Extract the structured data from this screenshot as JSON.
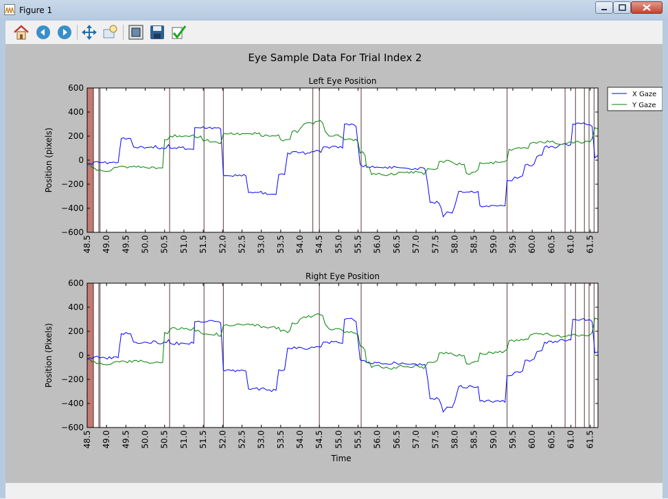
{
  "window": {
    "title": "Figure 1",
    "buttons": [
      "minimize",
      "maximize",
      "close"
    ]
  },
  "toolbar": {
    "items": [
      "home-icon",
      "back-icon",
      "forward-icon",
      "pan-icon",
      "zoom-icon",
      "configure-subplots-icon",
      "save-icon",
      "edit-check-icon"
    ]
  },
  "figure_title": "Eye Sample Data For Trial Index 2",
  "chart_data": [
    {
      "type": "line",
      "title": "Left Eye Position",
      "xlabel": "",
      "ylabel": "Position (pixels)",
      "xlim": [
        48.5,
        61.7
      ],
      "ylim": [
        -600,
        600
      ],
      "xticks": [
        "48.5",
        "49.0",
        "49.5",
        "50.0",
        "50.5",
        "51.0",
        "51.5",
        "52.0",
        "52.5",
        "53.0",
        "53.5",
        "54.0",
        "54.5",
        "55.0",
        "55.5",
        "56.0",
        "56.5",
        "57.0",
        "57.5",
        "58.0",
        "58.5",
        "59.0",
        "59.5",
        "60.0",
        "60.5",
        "61.0",
        "61.5"
      ],
      "yticks": [
        "600",
        "400",
        "200",
        "0",
        "−200",
        "−400",
        "−600"
      ],
      "legend": {
        "position": "outside-right",
        "entries": [
          "X Gaze",
          "Y Gaze"
        ]
      },
      "event_shading": [
        [
          48.5,
          48.66
        ]
      ],
      "event_lines": [
        48.66,
        48.8,
        48.83,
        50.63,
        51.52,
        52.02,
        54.33,
        54.5,
        55.58,
        59.35,
        60.85,
        61.12,
        61.35,
        61.47,
        61.6
      ],
      "series": [
        {
          "name": "X Gaze",
          "color": "#0000ff",
          "x": [
            48.5,
            48.68,
            48.82,
            48.85,
            49.3,
            49.38,
            49.62,
            49.7,
            50.32,
            50.6,
            50.65,
            51.25,
            51.28,
            51.32,
            51.9,
            51.95,
            52.02,
            52.05,
            52.6,
            52.67,
            53.1,
            53.15,
            53.38,
            53.45,
            53.6,
            53.68,
            54.25,
            54.3,
            54.6,
            54.7,
            55.1,
            55.15,
            55.45,
            55.55,
            55.58,
            55.7,
            55.72,
            55.82,
            56.7,
            56.8,
            57.22,
            57.25,
            57.3,
            57.36,
            57.65,
            57.7,
            57.8,
            58.0,
            58.1,
            58.6,
            58.65,
            59.05,
            59.3,
            59.35,
            59.4,
            59.55,
            59.75,
            59.82,
            60.05,
            60.12,
            60.25,
            60.32,
            60.65,
            60.72,
            61.0,
            61.05,
            61.55,
            61.62,
            61.7
          ],
          "y": [
            -30,
            -15,
            -20,
            -20,
            -20,
            180,
            180,
            110,
            100,
            130,
            100,
            90,
            270,
            270,
            270,
            260,
            -120,
            -130,
            -130,
            -270,
            -270,
            -285,
            -285,
            -120,
            -120,
            60,
            60,
            70,
            110,
            110,
            100,
            300,
            280,
            -30,
            -45,
            -40,
            -55,
            -60,
            -65,
            -70,
            -70,
            -100,
            -200,
            -350,
            -400,
            -470,
            -430,
            -380,
            -260,
            -260,
            -380,
            -380,
            -380,
            -170,
            -170,
            -140,
            -130,
            -40,
            -30,
            30,
            40,
            110,
            110,
            130,
            130,
            300,
            280,
            20,
            40
          ]
        },
        {
          "name": "Y Gaze",
          "color": "#008000",
          "x": [
            48.5,
            48.62,
            48.75,
            48.9,
            49.0,
            49.1,
            49.2,
            49.4,
            49.48,
            50.0,
            50.45,
            50.5,
            50.65,
            51.0,
            51.25,
            51.3,
            51.5,
            51.9,
            51.95,
            52.02,
            52.05,
            53.0,
            53.5,
            53.8,
            54.0,
            54.1,
            54.4,
            54.65,
            54.75,
            55.15,
            55.5,
            55.55,
            55.62,
            55.68,
            55.72,
            55.85,
            55.9,
            56.1,
            56.3,
            56.55,
            57.2,
            57.3,
            57.55,
            57.6,
            57.95,
            58.0,
            58.3,
            58.45,
            58.6,
            58.65,
            59.05,
            59.35,
            59.4,
            59.6,
            59.95,
            60.05,
            60.45,
            60.6,
            60.75,
            60.9,
            60.95,
            61.55,
            61.62,
            61.7
          ],
          "y": [
            -40,
            -60,
            -85,
            -90,
            -95,
            -90,
            -60,
            -50,
            -55,
            -60,
            -65,
            170,
            200,
            200,
            210,
            190,
            160,
            140,
            140,
            220,
            220,
            200,
            170,
            240,
            260,
            300,
            320,
            240,
            200,
            170,
            150,
            60,
            70,
            40,
            -60,
            -120,
            -110,
            -120,
            -120,
            -100,
            -120,
            -70,
            -70,
            -10,
            -20,
            -30,
            -110,
            -100,
            -80,
            -20,
            -10,
            0,
            90,
            100,
            140,
            150,
            150,
            140,
            130,
            140,
            150,
            180,
            270,
            260
          ]
        }
      ]
    },
    {
      "type": "line",
      "title": "Right Eye Position",
      "xlabel": "Time",
      "ylabel": "Position (Pixels)",
      "xlim": [
        48.5,
        61.7
      ],
      "ylim": [
        -600,
        600
      ],
      "xticks": [
        "48.5",
        "49.0",
        "49.5",
        "50.0",
        "50.5",
        "51.0",
        "51.5",
        "52.0",
        "52.5",
        "53.0",
        "53.5",
        "54.0",
        "54.5",
        "55.0",
        "55.5",
        "56.0",
        "56.5",
        "57.0",
        "57.5",
        "58.0",
        "58.5",
        "59.0",
        "59.5",
        "60.0",
        "60.5",
        "61.0",
        "61.5"
      ],
      "yticks": [
        "600",
        "400",
        "200",
        "0",
        "−200",
        "−400",
        "−600"
      ],
      "event_shading": [
        [
          48.5,
          48.66
        ]
      ],
      "event_lines": [
        48.66,
        48.8,
        48.83,
        50.63,
        51.52,
        52.02,
        54.5,
        55.58,
        59.35,
        60.85,
        61.12,
        61.35,
        61.47,
        61.6
      ],
      "series": [
        {
          "name": "X Gaze",
          "color": "#0000ff",
          "x": [
            48.5,
            48.68,
            48.82,
            48.85,
            49.3,
            49.38,
            49.62,
            49.7,
            50.32,
            50.6,
            50.65,
            51.25,
            51.28,
            51.32,
            51.9,
            51.95,
            52.02,
            52.05,
            52.6,
            52.67,
            53.1,
            53.15,
            53.38,
            53.45,
            53.6,
            53.68,
            54.25,
            54.3,
            54.6,
            54.7,
            55.1,
            55.15,
            55.45,
            55.55,
            55.58,
            55.7,
            55.72,
            55.82,
            56.7,
            56.8,
            57.22,
            57.25,
            57.3,
            57.36,
            57.65,
            57.7,
            57.8,
            58.0,
            58.1,
            58.6,
            58.65,
            59.05,
            59.3,
            59.35,
            59.4,
            59.55,
            59.75,
            59.82,
            60.05,
            60.12,
            60.25,
            60.32,
            60.65,
            60.72,
            61.0,
            61.05,
            61.55,
            61.62,
            61.7
          ],
          "y": [
            -30,
            -15,
            -20,
            -20,
            -20,
            180,
            180,
            110,
            100,
            130,
            100,
            100,
            280,
            280,
            280,
            270,
            -120,
            -130,
            -130,
            -280,
            -280,
            -290,
            -290,
            -120,
            -120,
            60,
            60,
            70,
            110,
            110,
            100,
            300,
            280,
            -30,
            -45,
            -50,
            -60,
            -65,
            -70,
            -75,
            -75,
            -100,
            -200,
            -360,
            -410,
            -470,
            -430,
            -380,
            -260,
            -260,
            -380,
            -380,
            -390,
            -170,
            -170,
            -140,
            -130,
            -40,
            -30,
            30,
            40,
            110,
            110,
            130,
            130,
            300,
            280,
            20,
            30
          ]
        },
        {
          "name": "Y Gaze",
          "color": "#008000",
          "x": [
            48.5,
            48.62,
            48.75,
            48.9,
            49.0,
            49.1,
            49.2,
            49.4,
            49.48,
            50.0,
            50.45,
            50.5,
            50.65,
            51.0,
            51.25,
            51.3,
            51.5,
            51.9,
            51.95,
            52.02,
            52.05,
            53.0,
            53.5,
            53.8,
            54.0,
            54.1,
            54.4,
            54.65,
            54.75,
            55.15,
            55.5,
            55.55,
            55.62,
            55.68,
            55.72,
            55.85,
            55.9,
            56.1,
            56.3,
            56.55,
            57.2,
            57.3,
            57.55,
            57.6,
            57.95,
            58.0,
            58.3,
            58.45,
            58.6,
            58.65,
            59.05,
            59.35,
            59.4,
            59.6,
            59.95,
            60.05,
            60.45,
            60.6,
            60.75,
            60.9,
            60.95,
            61.55,
            61.62,
            61.7
          ],
          "y": [
            -40,
            -55,
            -70,
            -75,
            -80,
            -75,
            -55,
            -45,
            -50,
            -55,
            -60,
            190,
            220,
            220,
            230,
            200,
            175,
            160,
            160,
            250,
            250,
            230,
            200,
            270,
            300,
            320,
            340,
            260,
            220,
            190,
            170,
            80,
            70,
            40,
            -60,
            -100,
            -90,
            -100,
            -110,
            -90,
            -110,
            -60,
            -40,
            20,
            10,
            0,
            -70,
            -60,
            -50,
            20,
            30,
            50,
            120,
            130,
            170,
            180,
            170,
            160,
            150,
            160,
            170,
            190,
            310,
            300
          ]
        }
      ]
    }
  ]
}
